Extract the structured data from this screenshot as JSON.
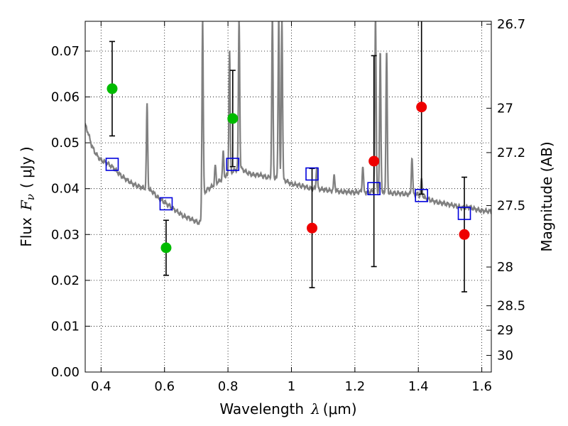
{
  "chart_data": {
    "type": "scatter",
    "xlabel": {
      "text": "Wavelength",
      "symbol": "λ",
      "unit": "(μm)"
    },
    "ylabel": {
      "text": "Flux",
      "symbol": "F",
      "subscript": "ν",
      "unit": "( μJy )"
    },
    "ylabel_right": "Magnitude (AB)",
    "xlim": [
      0.35,
      1.63
    ],
    "ylim": [
      0.0,
      0.0765
    ],
    "x_ticks": [
      "0.4",
      "0.6",
      "0.8",
      "1",
      "1.2",
      "1.4",
      "1.6"
    ],
    "y_ticks": [
      "0.00",
      "0.01",
      "0.02",
      "0.03",
      "0.04",
      "0.05",
      "0.06",
      "0.07"
    ],
    "right_ticks": [
      "26.7",
      "27",
      "27.2",
      "27.5",
      "28",
      "28.5",
      "29",
      "30"
    ],
    "grid": true,
    "colors": {
      "model": "#808080",
      "green": "#00bb00",
      "red": "#ee0000",
      "square": "#0000dd",
      "error": "#000000"
    },
    "points": [
      {
        "x": 0.435,
        "y": 0.0618,
        "err": 0.0103,
        "color": "green"
      },
      {
        "x": 0.605,
        "y": 0.0271,
        "err": 0.006,
        "color": "green"
      },
      {
        "x": 0.815,
        "y": 0.0553,
        "err": 0.0105,
        "color": "green"
      },
      {
        "x": 1.065,
        "y": 0.0314,
        "err": 0.013,
        "color": "red"
      },
      {
        "x": 1.26,
        "y": 0.046,
        "err": 0.023,
        "color": "red"
      },
      {
        "x": 1.41,
        "y": 0.0578,
        "err": 0.019,
        "color": "red"
      },
      {
        "x": 1.545,
        "y": 0.03,
        "err": 0.0125,
        "color": "red"
      }
    ],
    "model_photometry": [
      {
        "x": 0.435,
        "y": 0.0453
      },
      {
        "x": 0.605,
        "y": 0.0367
      },
      {
        "x": 0.815,
        "y": 0.0453
      },
      {
        "x": 1.065,
        "y": 0.0432
      },
      {
        "x": 1.26,
        "y": 0.04
      },
      {
        "x": 1.41,
        "y": 0.0385
      },
      {
        "x": 1.545,
        "y": 0.0346
      }
    ],
    "model_spectrum": {
      "continuum": [
        [
          0.35,
          0.054
        ],
        [
          0.36,
          0.052
        ],
        [
          0.37,
          0.0495
        ],
        [
          0.38,
          0.048
        ],
        [
          0.39,
          0.047
        ],
        [
          0.4,
          0.0462
        ],
        [
          0.42,
          0.0455
        ],
        [
          0.44,
          0.0445
        ],
        [
          0.46,
          0.043
        ],
        [
          0.48,
          0.042
        ],
        [
          0.5,
          0.041
        ],
        [
          0.52,
          0.0405
        ],
        [
          0.54,
          0.04
        ],
        [
          0.56,
          0.0395
        ],
        [
          0.58,
          0.038
        ],
        [
          0.6,
          0.037
        ],
        [
          0.62,
          0.036
        ],
        [
          0.64,
          0.035
        ],
        [
          0.66,
          0.034
        ],
        [
          0.68,
          0.0335
        ],
        [
          0.7,
          0.0328
        ],
        [
          0.71,
          0.0325
        ],
        [
          0.715,
          0.033
        ],
        [
          0.72,
          0.0385
        ],
        [
          0.73,
          0.0395
        ],
        [
          0.74,
          0.04
        ],
        [
          0.76,
          0.041
        ],
        [
          0.78,
          0.042
        ],
        [
          0.8,
          0.043
        ],
        [
          0.82,
          0.044
        ],
        [
          0.84,
          0.0445
        ],
        [
          0.86,
          0.0435
        ],
        [
          0.88,
          0.043
        ],
        [
          0.9,
          0.043
        ],
        [
          0.92,
          0.0425
        ],
        [
          0.94,
          0.0425
        ],
        [
          0.96,
          0.042
        ],
        [
          0.98,
          0.0418
        ],
        [
          1.0,
          0.041
        ],
        [
          1.02,
          0.0408
        ],
        [
          1.04,
          0.0405
        ],
        [
          1.06,
          0.04
        ],
        [
          1.08,
          0.04
        ],
        [
          1.1,
          0.0398
        ],
        [
          1.12,
          0.0396
        ],
        [
          1.14,
          0.0395
        ],
        [
          1.16,
          0.0393
        ],
        [
          1.18,
          0.0393
        ],
        [
          1.2,
          0.0392
        ],
        [
          1.22,
          0.0393
        ],
        [
          1.24,
          0.0392
        ],
        [
          1.26,
          0.0395
        ],
        [
          1.28,
          0.0392
        ],
        [
          1.3,
          0.039
        ],
        [
          1.32,
          0.039
        ],
        [
          1.34,
          0.039
        ],
        [
          1.36,
          0.0388
        ],
        [
          1.38,
          0.0388
        ],
        [
          1.4,
          0.0387
        ],
        [
          1.42,
          0.038
        ],
        [
          1.44,
          0.0375
        ],
        [
          1.46,
          0.037
        ],
        [
          1.48,
          0.0368
        ],
        [
          1.5,
          0.0365
        ],
        [
          1.52,
          0.0362
        ],
        [
          1.54,
          0.0358
        ],
        [
          1.56,
          0.036
        ],
        [
          1.58,
          0.0355
        ],
        [
          1.6,
          0.0352
        ],
        [
          1.63,
          0.035
        ]
      ],
      "lines": [
        {
          "x": 0.545,
          "peak": 0.0585,
          "width": 0.004
        },
        {
          "x": 0.72,
          "peak": 0.077,
          "width": 0.004
        },
        {
          "x": 0.76,
          "peak": 0.045,
          "width": 0.004
        },
        {
          "x": 0.785,
          "peak": 0.048,
          "width": 0.004
        },
        {
          "x": 0.805,
          "peak": 0.07,
          "width": 0.004
        },
        {
          "x": 0.835,
          "peak": 0.077,
          "width": 0.004
        },
        {
          "x": 0.94,
          "peak": 0.077,
          "width": 0.004
        },
        {
          "x": 0.96,
          "peak": 0.077,
          "width": 0.004
        },
        {
          "x": 0.97,
          "peak": 0.077,
          "width": 0.004
        },
        {
          "x": 1.08,
          "peak": 0.045,
          "width": 0.004
        },
        {
          "x": 1.135,
          "peak": 0.043,
          "width": 0.004
        },
        {
          "x": 1.225,
          "peak": 0.045,
          "width": 0.004
        },
        {
          "x": 1.265,
          "peak": 0.077,
          "width": 0.004
        },
        {
          "x": 1.28,
          "peak": 0.07,
          "width": 0.004
        },
        {
          "x": 1.3,
          "peak": 0.07,
          "width": 0.004
        },
        {
          "x": 1.38,
          "peak": 0.047,
          "width": 0.004
        },
        {
          "x": 1.41,
          "peak": 0.042,
          "width": 0.004
        }
      ]
    }
  }
}
